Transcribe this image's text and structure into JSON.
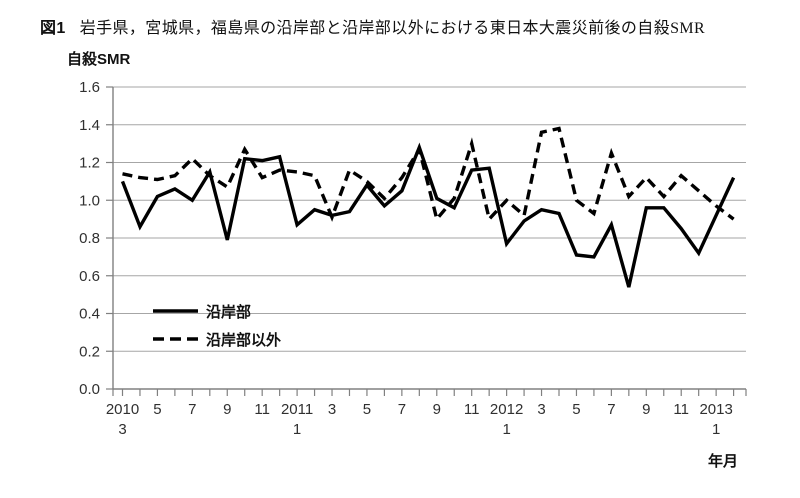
{
  "figure": {
    "label": "図1",
    "caption": "岩手県，宮城県，福島県の沿岸部と沿岸部以外における東日本大震災前後の自殺SMR"
  },
  "chart_data": {
    "type": "line",
    "title": "岩手県，宮城県，福島県の沿岸部と沿岸部以外における東日本大震災前後の自殺SMR",
    "ylabel": "自殺SMR",
    "xlabel": "年月",
    "ylim": [
      0,
      1.6
    ],
    "ytick_step": 0.2,
    "grid": true,
    "legend_position": "inside bottom-left",
    "colors": {
      "line": "#000000",
      "gridline": "#a6a6a6",
      "axis": "#808080",
      "tick_text": "#303030"
    },
    "x": [
      "2010/3",
      "2010/4",
      "2010/5",
      "2010/6",
      "2010/7",
      "2010/8",
      "2010/9",
      "2010/10",
      "2010/11",
      "2010/12",
      "2011/1",
      "2011/2",
      "2011/3",
      "2011/4",
      "2011/5",
      "2011/6",
      "2011/7",
      "2011/8",
      "2011/9",
      "2011/10",
      "2011/11",
      "2011/12",
      "2012/1",
      "2012/2",
      "2012/3",
      "2012/4",
      "2012/5",
      "2012/6",
      "2012/7",
      "2012/8",
      "2012/9",
      "2012/10",
      "2012/11",
      "2012/12",
      "2013/1",
      "2013/2"
    ],
    "x_tick_labels": [
      {
        "i": 0,
        "year": "2010",
        "month": "3"
      },
      {
        "i": 2,
        "month": "5"
      },
      {
        "i": 4,
        "month": "7"
      },
      {
        "i": 6,
        "month": "9"
      },
      {
        "i": 8,
        "month": "11"
      },
      {
        "i": 10,
        "year": "2011",
        "month": "1"
      },
      {
        "i": 12,
        "month": "3"
      },
      {
        "i": 14,
        "month": "5"
      },
      {
        "i": 16,
        "month": "7"
      },
      {
        "i": 18,
        "month": "9"
      },
      {
        "i": 20,
        "month": "11"
      },
      {
        "i": 22,
        "year": "2012",
        "month": "1"
      },
      {
        "i": 24,
        "month": "3"
      },
      {
        "i": 26,
        "month": "5"
      },
      {
        "i": 28,
        "month": "7"
      },
      {
        "i": 30,
        "month": "9"
      },
      {
        "i": 32,
        "month": "11"
      },
      {
        "i": 34,
        "year": "2013",
        "month": "1"
      }
    ],
    "series": [
      {
        "name": "沿岸部",
        "line_style": "solid",
        "color": "#000000",
        "values": [
          1.1,
          0.86,
          1.02,
          1.06,
          1.0,
          1.15,
          0.79,
          1.22,
          1.21,
          1.23,
          0.87,
          0.95,
          0.92,
          0.94,
          1.08,
          0.97,
          1.05,
          1.28,
          1.01,
          0.96,
          1.16,
          1.17,
          0.77,
          0.89,
          0.95,
          0.93,
          0.71,
          0.7,
          0.87,
          0.54,
          0.96,
          0.96,
          0.85,
          0.72,
          0.92,
          1.12
        ]
      },
      {
        "name": "沿岸部以外",
        "line_style": "dashed",
        "color": "#000000",
        "values": [
          1.14,
          1.12,
          1.11,
          1.13,
          1.22,
          1.13,
          1.07,
          1.27,
          1.12,
          1.16,
          1.15,
          1.13,
          0.91,
          1.16,
          1.1,
          1.01,
          1.12,
          1.27,
          0.9,
          1.01,
          1.3,
          0.9,
          1.0,
          0.92,
          1.36,
          1.38,
          1.0,
          0.93,
          1.25,
          1.02,
          1.12,
          1.02,
          1.13,
          1.05,
          0.97,
          0.9
        ]
      }
    ]
  }
}
